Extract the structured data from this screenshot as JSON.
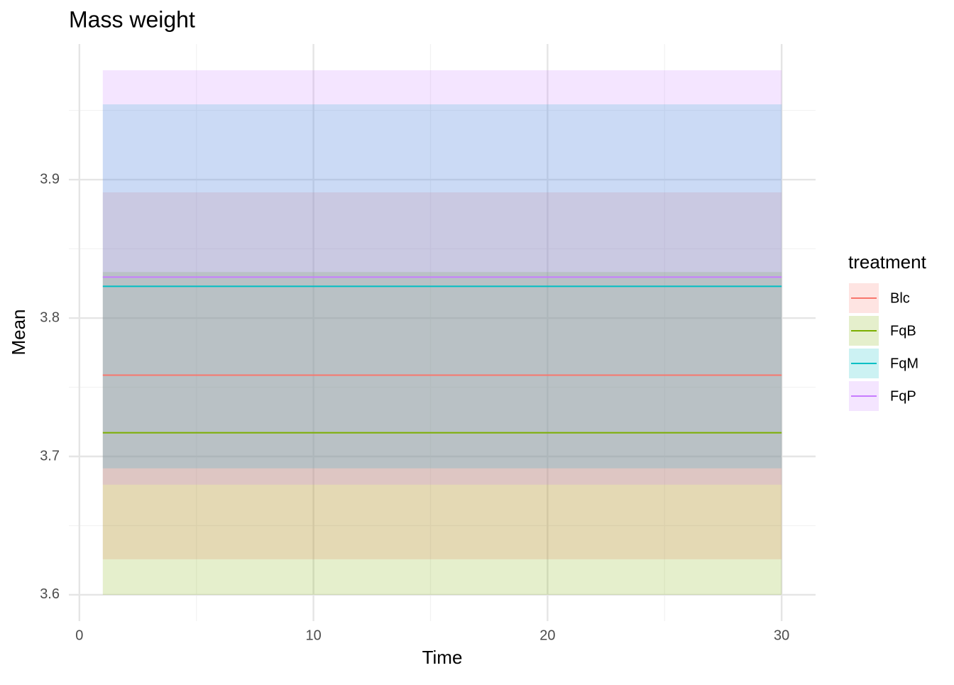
{
  "chart_data": {
    "type": "line",
    "title": "Mass weight",
    "x_label": "Time",
    "y_label": "Mean",
    "x": [
      1,
      30
    ],
    "series": [
      {
        "name": "Blc",
        "color": "#F8766D",
        "values": [
          3.7587,
          3.7587
        ],
        "ymin": [
          3.6257,
          3.6257
        ],
        "ymax": [
          3.8908,
          3.8908
        ]
      },
      {
        "name": "FqB",
        "color": "#7CAE00",
        "values": [
          3.7171,
          3.7171
        ],
        "ymin": [
          3.6,
          3.6
        ],
        "ymax": [
          3.8332,
          3.8332
        ]
      },
      {
        "name": "FqM",
        "color": "#00BFC4",
        "values": [
          3.8229,
          3.8229
        ],
        "ymin": [
          3.6914,
          3.6914
        ],
        "ymax": [
          3.9544,
          3.9544
        ]
      },
      {
        "name": "FqP",
        "color": "#C77CFF",
        "values": [
          3.8296,
          3.8296
        ],
        "ymin": [
          3.6796,
          3.6796
        ],
        "ymax": [
          3.979,
          3.979
        ]
      }
    ],
    "ribbon_opacity": 0.2,
    "xlim": [
      -0.45,
      31.45
    ],
    "xticks": [
      0,
      10,
      20,
      30
    ],
    "ylim": [
      3.581,
      3.998
    ],
    "yticks": [
      3.6,
      3.7,
      3.8,
      3.9
    ],
    "grid": true,
    "legend_title": "treatment",
    "legend_position": "right"
  }
}
